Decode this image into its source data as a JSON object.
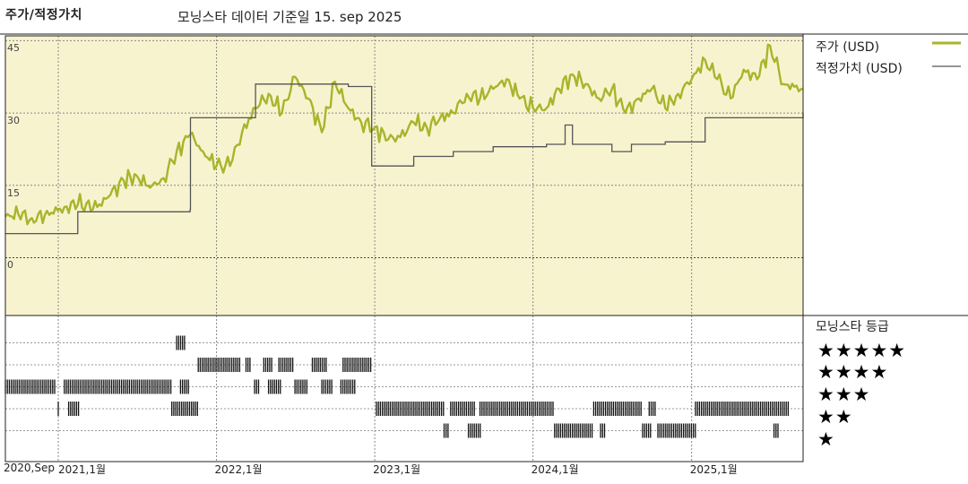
{
  "header": {
    "left_title": "주가/적정가치",
    "center_title": "모닝스타 데이터 기준일 15. sep 2025"
  },
  "legend": {
    "price_label": "주가 (USD)",
    "fair_label": "적정가치 (USD)",
    "price_color": "#a7b52b",
    "fair_color": "#555555",
    "panel_bg": "#f8f3cf"
  },
  "rating_panel": {
    "title": "모닝스타 등급",
    "rows": [
      "★★★★★",
      "★★★★",
      "★★★",
      "★★",
      "★"
    ]
  },
  "chart_data": {
    "type": "line",
    "title": "모닝스타 데이터 기준일 15. sep 2025",
    "ylabel": "주가/적정가치",
    "ylim": [
      -12,
      46
    ],
    "yticks": [
      0,
      15,
      30,
      45
    ],
    "x_range": [
      "2020-09-01",
      "2025-09-15"
    ],
    "x_tick_labels": [
      {
        "label": "2020,Sep",
        "date": "2020-09-01"
      },
      {
        "label": "2021,1월",
        "date": "2021-01-01"
      },
      {
        "label": "2022,1월",
        "date": "2022-01-01"
      },
      {
        "label": "2023,1월",
        "date": "2023-01-01"
      },
      {
        "label": "2024,1월",
        "date": "2024-01-01"
      },
      {
        "label": "2025,1월",
        "date": "2025-01-01"
      }
    ],
    "grid": true,
    "series": [
      {
        "name": "주가 (USD)",
        "color": "#a7b52b",
        "points": [
          [
            "2020-09-01",
            8.5
          ],
          [
            "2020-10-01",
            9.0
          ],
          [
            "2020-11-01",
            8.2
          ],
          [
            "2020-12-01",
            8.8
          ],
          [
            "2021-01-15",
            10.5
          ],
          [
            "2021-02-15",
            11.0
          ],
          [
            "2021-04-01",
            10.5
          ],
          [
            "2021-05-01",
            13.0
          ],
          [
            "2021-06-01",
            16.0
          ],
          [
            "2021-07-01",
            17.0
          ],
          [
            "2021-08-01",
            14.5
          ],
          [
            "2021-09-01",
            16.5
          ],
          [
            "2021-10-01",
            22.0
          ],
          [
            "2021-11-01",
            25.5
          ],
          [
            "2021-12-01",
            22.0
          ],
          [
            "2022-01-01",
            19.0
          ],
          [
            "2022-02-01",
            19.0
          ],
          [
            "2022-03-01",
            26.0
          ],
          [
            "2022-04-01",
            31.0
          ],
          [
            "2022-05-01",
            34.0
          ],
          [
            "2022-06-01",
            30.0
          ],
          [
            "2022-07-01",
            37.5
          ],
          [
            "2022-08-01",
            33.0
          ],
          [
            "2022-09-01",
            26.0
          ],
          [
            "2022-10-01",
            36.5
          ],
          [
            "2022-11-01",
            31.0
          ],
          [
            "2022-12-01",
            28.0
          ],
          [
            "2023-01-01",
            27.0
          ],
          [
            "2023-02-01",
            24.5
          ],
          [
            "2023-03-01",
            25.0
          ],
          [
            "2023-04-01",
            28.0
          ],
          [
            "2023-05-01",
            27.0
          ],
          [
            "2023-06-01",
            29.0
          ],
          [
            "2023-07-01",
            30.0
          ],
          [
            "2023-08-01",
            34.0
          ],
          [
            "2023-09-01",
            33.0
          ],
          [
            "2023-10-01",
            35.0
          ],
          [
            "2023-11-01",
            37.0
          ],
          [
            "2023-12-01",
            33.0
          ],
          [
            "2024-01-01",
            31.0
          ],
          [
            "2024-02-01",
            31.0
          ],
          [
            "2024-03-01",
            35.0
          ],
          [
            "2024-04-01",
            38.0
          ],
          [
            "2024-05-01",
            36.0
          ],
          [
            "2024-06-01",
            33.0
          ],
          [
            "2024-07-01",
            35.0
          ],
          [
            "2024-08-01",
            30.0
          ],
          [
            "2024-09-01",
            33.0
          ],
          [
            "2024-10-01",
            35.0
          ],
          [
            "2024-11-01",
            31.0
          ],
          [
            "2024-12-01",
            34.0
          ],
          [
            "2025-01-01",
            37.0
          ],
          [
            "2025-02-01",
            41.0
          ],
          [
            "2025-03-01",
            37.0
          ],
          [
            "2025-04-01",
            33.0
          ],
          [
            "2025-05-01",
            39.0
          ],
          [
            "2025-06-01",
            37.0
          ],
          [
            "2025-07-01",
            44.0
          ],
          [
            "2025-08-01",
            36.0
          ],
          [
            "2025-09-15",
            35.0
          ]
        ]
      },
      {
        "name": "적정가치 (USD)",
        "color": "#555555",
        "step": true,
        "points": [
          [
            "2020-09-01",
            5.0
          ],
          [
            "2021-02-15",
            9.5
          ],
          [
            "2021-05-01",
            9.5
          ],
          [
            "2021-11-01",
            10.0
          ],
          [
            "2021-11-02",
            29.0
          ],
          [
            "2022-04-01",
            36.0
          ],
          [
            "2022-11-01",
            35.5
          ],
          [
            "2022-12-25",
            19.0
          ],
          [
            "2023-04-01",
            21.0
          ],
          [
            "2023-07-01",
            22.0
          ],
          [
            "2023-10-01",
            23.0
          ],
          [
            "2024-02-01",
            23.5
          ],
          [
            "2024-03-15",
            27.5
          ],
          [
            "2024-04-01",
            23.5
          ],
          [
            "2024-07-01",
            22.0
          ],
          [
            "2024-08-15",
            23.5
          ],
          [
            "2024-11-01",
            24.0
          ],
          [
            "2025-02-01",
            29.0
          ],
          [
            "2025-09-15",
            30.0
          ]
        ]
      }
    ],
    "rating_history": [
      {
        "stars": 5,
        "from": "2021-10-01",
        "to": "2021-10-20"
      },
      {
        "stars": 4,
        "from": "2021-11-20",
        "to": "2022-02-25"
      },
      {
        "stars": 4,
        "from": "2022-03-10",
        "to": "2022-03-20"
      },
      {
        "stars": 4,
        "from": "2022-04-20",
        "to": "2022-05-10"
      },
      {
        "stars": 4,
        "from": "2022-05-25",
        "to": "2022-06-30"
      },
      {
        "stars": 4,
        "from": "2022-08-10",
        "to": "2022-09-15"
      },
      {
        "stars": 4,
        "from": "2022-10-20",
        "to": "2022-12-25"
      },
      {
        "stars": 3,
        "from": "2020-09-01",
        "to": "2020-12-25"
      },
      {
        "stars": 3,
        "from": "2021-01-15",
        "to": "2021-09-20"
      },
      {
        "stars": 3,
        "from": "2021-10-10",
        "to": "2021-10-30"
      },
      {
        "stars": 3,
        "from": "2022-03-30",
        "to": "2022-04-10"
      },
      {
        "stars": 3,
        "from": "2022-05-01",
        "to": "2022-06-01"
      },
      {
        "stars": 3,
        "from": "2022-07-01",
        "to": "2022-08-01"
      },
      {
        "stars": 3,
        "from": "2022-09-01",
        "to": "2022-09-25"
      },
      {
        "stars": 3,
        "from": "2022-10-15",
        "to": "2022-11-20"
      },
      {
        "stars": 2,
        "from": "2021-01-01",
        "to": "2021-01-05"
      },
      {
        "stars": 2,
        "from": "2021-01-25",
        "to": "2021-02-20"
      },
      {
        "stars": 2,
        "from": "2021-09-20",
        "to": "2021-11-20"
      },
      {
        "stars": 2,
        "from": "2023-01-05",
        "to": "2023-06-10"
      },
      {
        "stars": 2,
        "from": "2023-06-25",
        "to": "2023-08-20"
      },
      {
        "stars": 2,
        "from": "2023-09-01",
        "to": "2024-02-20"
      },
      {
        "stars": 2,
        "from": "2024-05-20",
        "to": "2024-09-10"
      },
      {
        "stars": 2,
        "from": "2024-09-25",
        "to": "2024-10-10"
      },
      {
        "stars": 2,
        "from": "2025-01-10",
        "to": "2025-08-15"
      },
      {
        "stars": 1,
        "from": "2023-06-10",
        "to": "2023-06-20"
      },
      {
        "stars": 1,
        "from": "2023-08-05",
        "to": "2023-09-05"
      },
      {
        "stars": 1,
        "from": "2024-02-20",
        "to": "2024-05-20"
      },
      {
        "stars": 1,
        "from": "2024-06-05",
        "to": "2024-06-15"
      },
      {
        "stars": 1,
        "from": "2024-09-10",
        "to": "2024-10-01"
      },
      {
        "stars": 1,
        "from": "2024-10-15",
        "to": "2025-01-10"
      },
      {
        "stars": 1,
        "from": "2025-07-10",
        "to": "2025-07-20"
      }
    ]
  }
}
